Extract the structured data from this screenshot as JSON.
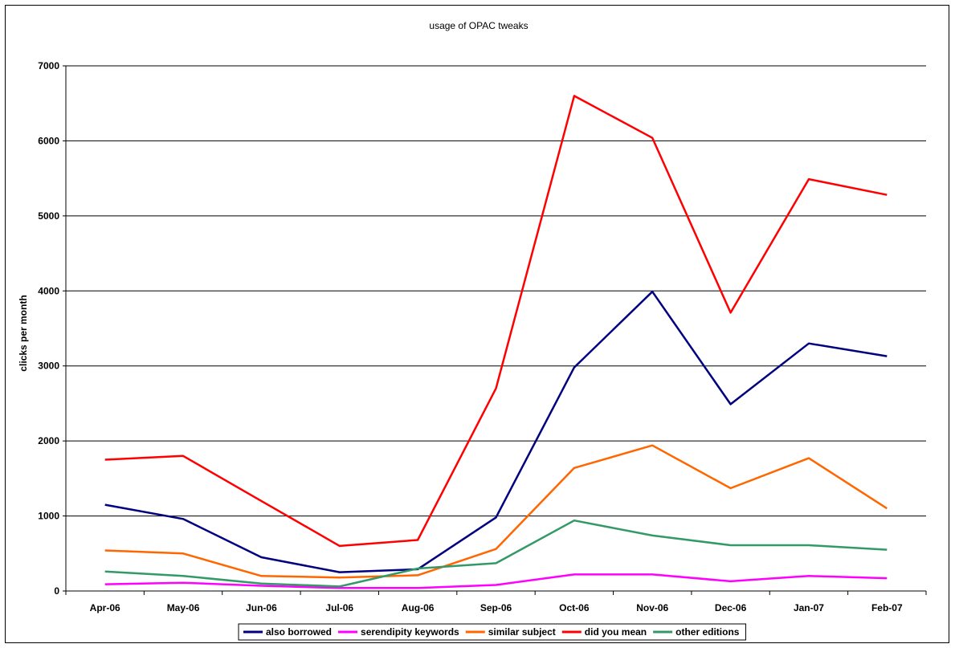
{
  "chart_data": {
    "type": "line",
    "title": "usage of OPAC tweaks",
    "xlabel": "",
    "ylabel": "clicks per month",
    "ylim": [
      0,
      7000
    ],
    "yticks": [
      0,
      1000,
      2000,
      3000,
      4000,
      5000,
      6000,
      7000
    ],
    "grid": true,
    "legend_position": "bottom",
    "categories": [
      "Apr-06",
      "May-06",
      "Jun-06",
      "Jul-06",
      "Aug-06",
      "Sep-06",
      "Oct-06",
      "Nov-06",
      "Dec-06",
      "Jan-07",
      "Feb-07"
    ],
    "series": [
      {
        "name": "also borrowed",
        "color": "#000080",
        "values": [
          1150,
          960,
          450,
          250,
          290,
          980,
          2980,
          3990,
          2490,
          3300,
          3130
        ]
      },
      {
        "name": "serendipity keywords",
        "color": "#ff00ff",
        "values": [
          90,
          110,
          70,
          40,
          40,
          80,
          220,
          220,
          130,
          200,
          170
        ]
      },
      {
        "name": "similar subject",
        "color": "#ff6600",
        "values": [
          540,
          500,
          200,
          180,
          210,
          560,
          1640,
          1940,
          1370,
          1770,
          1100
        ]
      },
      {
        "name": "did you mean",
        "color": "#ff0000",
        "values": [
          1750,
          1800,
          1200,
          600,
          680,
          2700,
          6600,
          6040,
          3710,
          5490,
          5280
        ]
      },
      {
        "name": "other editions",
        "color": "#339966",
        "values": [
          260,
          200,
          100,
          60,
          300,
          370,
          940,
          740,
          610,
          610,
          550
        ]
      }
    ]
  }
}
